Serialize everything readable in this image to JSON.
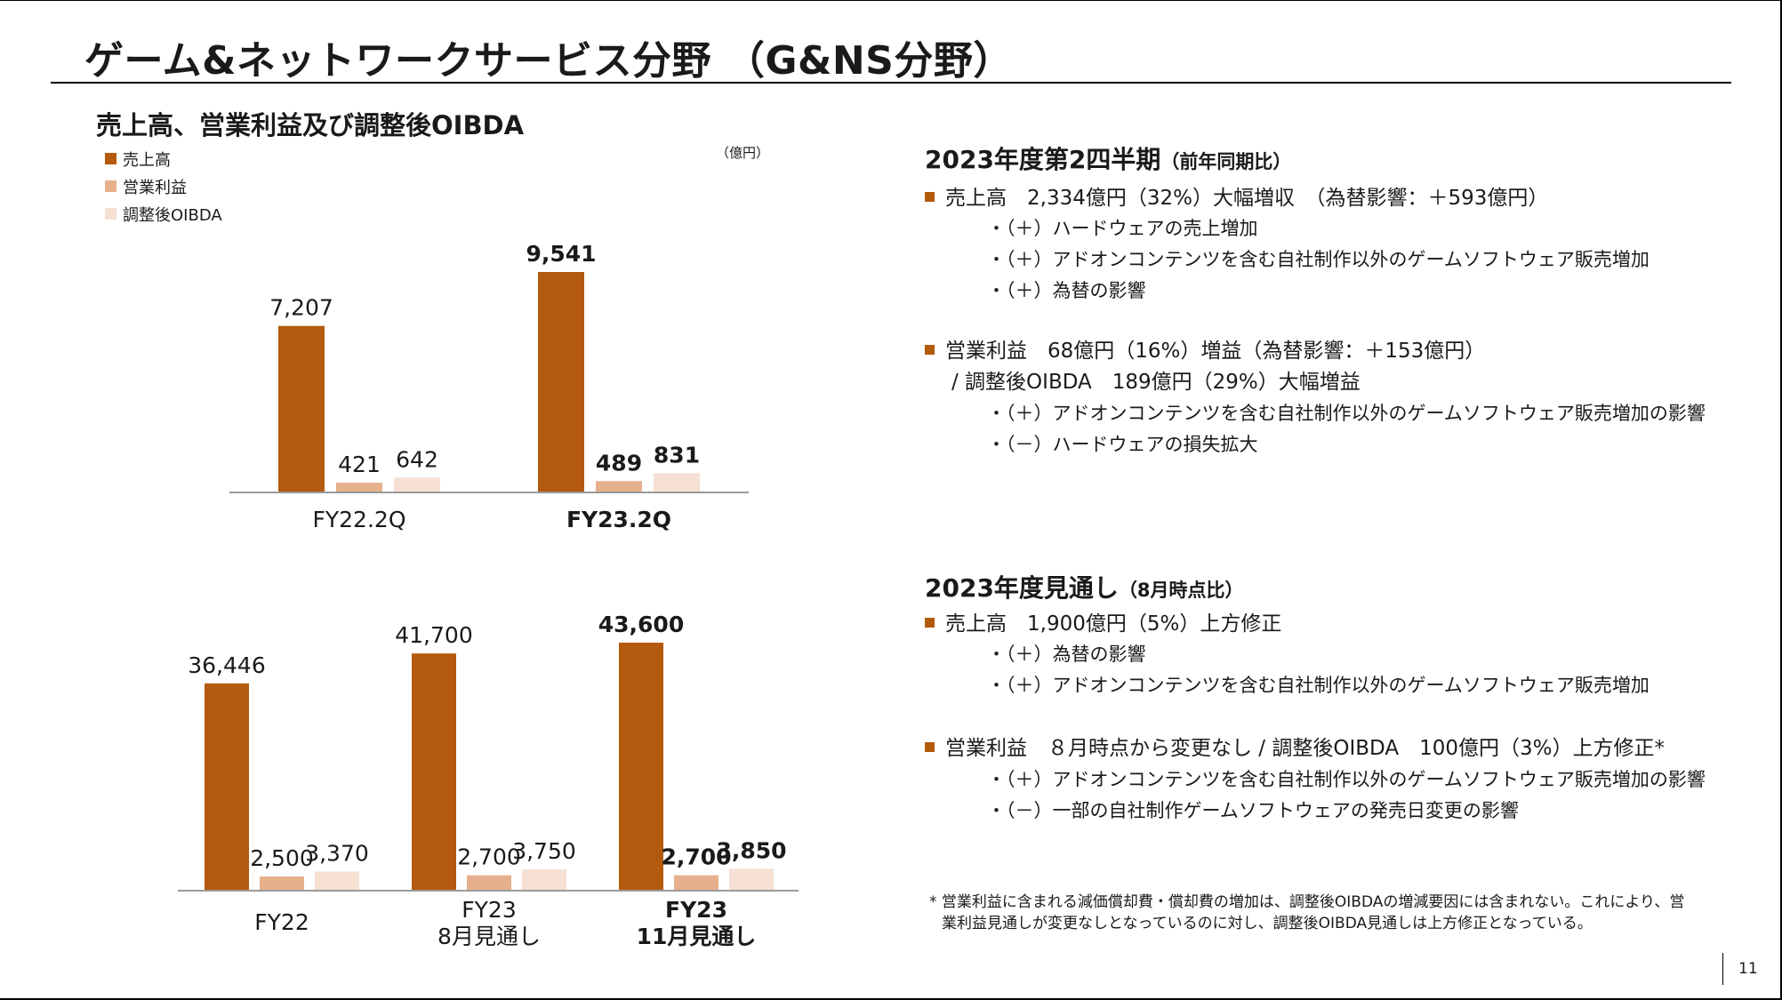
{
  "slide": {
    "title": "ゲーム&ネットワークサービス分野 （G&NS分野）",
    "page_number": "11"
  },
  "chart_panel": {
    "heading": "売上高、営業利益及び調整後OIBDA",
    "unit": "（億円）",
    "legend": [
      {
        "label": "売上高",
        "color": "#b35a0e"
      },
      {
        "label": "営業利益",
        "color": "#e6b08c"
      },
      {
        "label": "調整後OIBDA",
        "color": "#f5e0d3"
      }
    ]
  },
  "chart_data": [
    {
      "type": "bar",
      "categories": [
        "FY22.2Q",
        "FY23.2Q"
      ],
      "category_bold": [
        false,
        true
      ],
      "series": [
        {
          "name": "売上高",
          "values": [
            7207,
            9541
          ],
          "labels": [
            "7,207",
            "9,541"
          ],
          "color": "#b35a0e"
        },
        {
          "name": "営業利益",
          "values": [
            421,
            489
          ],
          "labels": [
            "421",
            "489"
          ],
          "color": "#e6b08c"
        },
        {
          "name": "調整後OIBDA",
          "values": [
            642,
            831
          ],
          "labels": [
            "642",
            "831"
          ],
          "color": "#f5e0d3"
        }
      ],
      "ylim": [
        0,
        9541
      ],
      "grid": false,
      "legend": "top-left"
    },
    {
      "type": "bar",
      "categories": [
        "FY22",
        "FY23\n8月見通し",
        "FY23\n11月見通し"
      ],
      "category_bold": [
        false,
        false,
        true
      ],
      "series": [
        {
          "name": "売上高",
          "values": [
            36446,
            41700,
            43600
          ],
          "labels": [
            "36,446",
            "41,700",
            "43,600"
          ],
          "color": "#b35a0e"
        },
        {
          "name": "営業利益",
          "values": [
            2500,
            2700,
            2700
          ],
          "labels": [
            "2,500",
            "2,700",
            "2,700"
          ],
          "color": "#e6b08c"
        },
        {
          "name": "調整後OIBDA",
          "values": [
            3370,
            3750,
            3850
          ],
          "labels": [
            "3,370",
            "3,750",
            "3,850"
          ],
          "color": "#f5e0d3"
        }
      ],
      "ylim": [
        0,
        43600
      ],
      "grid": false,
      "legend": "top-left"
    }
  ],
  "q2_section": {
    "heading": "2023年度第2四半期",
    "heading_small": "（前年同期比）",
    "sales_line": "売上高　2,334億円（32%）大幅増収　（為替影響：＋593億円）",
    "sales_sub": [
      "・（＋）ハードウェアの売上増加",
      "・（＋）アドオンコンテンツを含む自社制作以外のゲームソフトウェア販売増加",
      "・（＋）為替の影響"
    ],
    "profit_line": "営業利益　68億円（16%）増益（為替影響：＋153億円）",
    "profit_line2": "/ 調整後OIBDA　189億円（29%）大幅増益",
    "profit_sub": [
      "・（＋）アドオンコンテンツを含む自社制作以外のゲームソフトウェア販売増加の影響",
      "・（－）ハードウェアの損失拡大"
    ]
  },
  "forecast_section": {
    "heading": "2023年度見通し",
    "heading_small": "（8月時点比）",
    "sales_line": "売上高　1,900億円（5%）上方修正",
    "sales_sub": [
      "・（＋）為替の影響",
      "・（＋）アドオンコンテンツを含む自社制作以外のゲームソフトウェア販売増加"
    ],
    "profit_line": "営業利益　８月時点から変更なし / 調整後OIBDA　100億円（3%）上方修正*",
    "profit_sub": [
      "・（＋）アドオンコンテンツを含む自社制作以外のゲームソフトウェア販売増加の影響",
      "・（－）一部の自社制作ゲームソフトウェアの発売日変更の影響"
    ]
  },
  "footnote": {
    "line1": "* 営業利益に含まれる減価償却費・償却費の増加は、調整後OIBDAの増減要因には含まれない。これにより、営",
    "line2": "業利益見通しが変更なしとなっているのに対し、調整後OIBDA見通しは上方修正となっている。"
  }
}
